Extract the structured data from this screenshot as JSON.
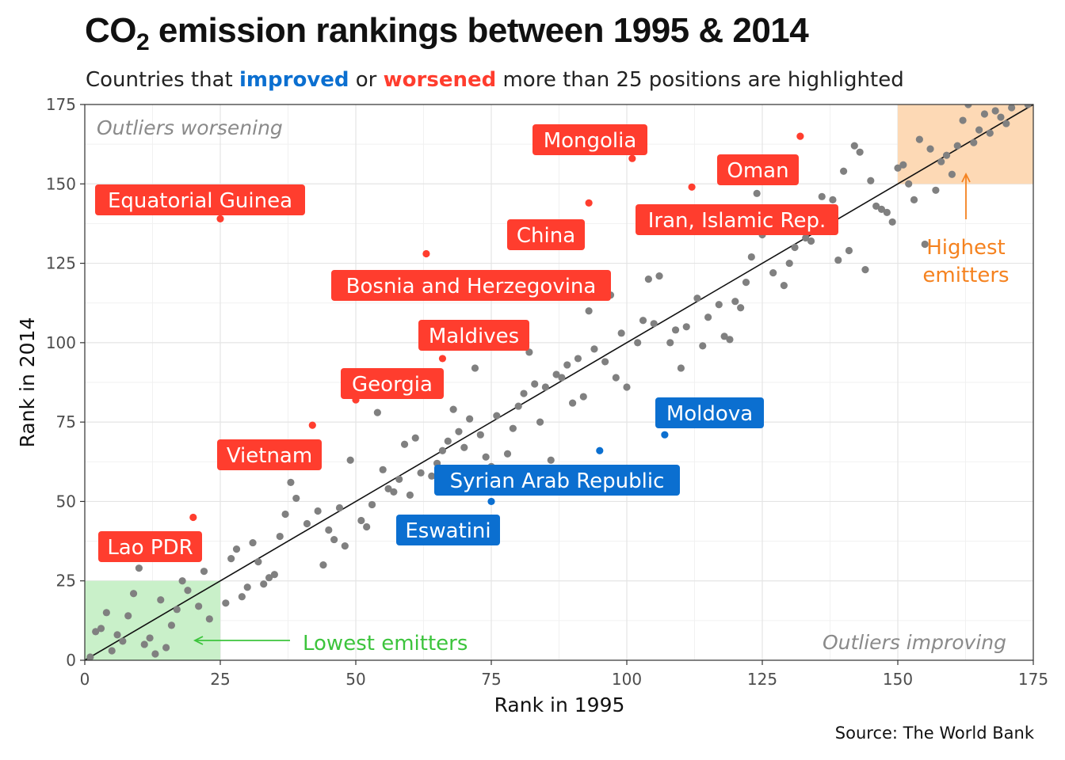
{
  "title": {
    "pre": "CO",
    "sub": "2",
    "post": " emission rankings between 1995 & 2014"
  },
  "subtitle": {
    "a": "Countries that ",
    "improved": "improved",
    "b": " or ",
    "worsened": "worsened",
    "c": " more than 25 positions are highlighted"
  },
  "source": "Source: The World Bank",
  "colors": {
    "improved": "#0b6fd0",
    "worsened": "#ff3d2e",
    "neutral": "#808080",
    "lowest_zone": "#c9f0c9",
    "highest_zone": "#fdd9b5",
    "lowest_text": "#3cc43c",
    "highest_text": "#f5821f"
  },
  "chart_data": {
    "type": "scatter",
    "xlabel": "Rank in 1995",
    "ylabel": "Rank in 2014",
    "xlim": [
      0,
      175
    ],
    "ylim": [
      0,
      175
    ],
    "xticks": [
      0,
      25,
      50,
      75,
      100,
      125,
      150,
      175
    ],
    "yticks": [
      0,
      25,
      50,
      75,
      100,
      125,
      150,
      175
    ],
    "grid": true,
    "reference_line": "y = x",
    "corner_labels": {
      "top_left": "Outliers worsening",
      "bottom_right": "Outliers improving"
    },
    "zones": [
      {
        "label": "Lowest emitters",
        "x": [
          0,
          25
        ],
        "y": [
          0,
          25
        ]
      },
      {
        "label": "Highest emitters",
        "x": [
          150,
          175
        ],
        "y": [
          150,
          175
        ]
      }
    ],
    "highlighted": [
      {
        "country": "Equatorial Guinea",
        "x": 25,
        "y": 139,
        "status": "worsened"
      },
      {
        "country": "Mongolia",
        "x": 101,
        "y": 158,
        "status": "worsened"
      },
      {
        "country": "Oman",
        "x": 132,
        "y": 165,
        "status": "worsened"
      },
      {
        "country": "China",
        "x": 93,
        "y": 144,
        "status": "worsened"
      },
      {
        "country": "Iran, Islamic Rep.",
        "x": 112,
        "y": 149,
        "status": "worsened"
      },
      {
        "country": "Bosnia and Herzegovina",
        "x": 63,
        "y": 128,
        "status": "worsened"
      },
      {
        "country": "Maldives",
        "x": 66,
        "y": 95,
        "status": "worsened"
      },
      {
        "country": "Georgia",
        "x": 50,
        "y": 82,
        "status": "worsened"
      },
      {
        "country": "Vietnam",
        "x": 42,
        "y": 74,
        "status": "worsened"
      },
      {
        "country": "Lao PDR",
        "x": 20,
        "y": 45,
        "status": "worsened"
      },
      {
        "country": "Moldova",
        "x": 107,
        "y": 71,
        "status": "improved"
      },
      {
        "country": "Syrian Arab Republic",
        "x": 95,
        "y": 66,
        "status": "improved"
      },
      {
        "country": "Eswatini",
        "x": 75,
        "y": 50,
        "status": "improved"
      }
    ],
    "other_points": [
      [
        1,
        1
      ],
      [
        2,
        9
      ],
      [
        3,
        10
      ],
      [
        4,
        15
      ],
      [
        5,
        3
      ],
      [
        6,
        8
      ],
      [
        7,
        6
      ],
      [
        8,
        14
      ],
      [
        9,
        21
      ],
      [
        10,
        29
      ],
      [
        11,
        5
      ],
      [
        12,
        7
      ],
      [
        13,
        2
      ],
      [
        14,
        19
      ],
      [
        15,
        4
      ],
      [
        16,
        11
      ],
      [
        17,
        16
      ],
      [
        18,
        25
      ],
      [
        19,
        22
      ],
      [
        21,
        17
      ],
      [
        22,
        28
      ],
      [
        23,
        13
      ],
      [
        26,
        18
      ],
      [
        27,
        32
      ],
      [
        28,
        35
      ],
      [
        29,
        20
      ],
      [
        30,
        23
      ],
      [
        31,
        37
      ],
      [
        32,
        31
      ],
      [
        33,
        24
      ],
      [
        34,
        26
      ],
      [
        35,
        27
      ],
      [
        36,
        39
      ],
      [
        37,
        46
      ],
      [
        38,
        56
      ],
      [
        39,
        51
      ],
      [
        41,
        43
      ],
      [
        43,
        47
      ],
      [
        44,
        30
      ],
      [
        45,
        41
      ],
      [
        46,
        38
      ],
      [
        47,
        48
      ],
      [
        48,
        36
      ],
      [
        49,
        63
      ],
      [
        51,
        44
      ],
      [
        52,
        42
      ],
      [
        53,
        49
      ],
      [
        54,
        78
      ],
      [
        55,
        60
      ],
      [
        56,
        54
      ],
      [
        57,
        53
      ],
      [
        58,
        57
      ],
      [
        59,
        68
      ],
      [
        60,
        52
      ],
      [
        61,
        70
      ],
      [
        62,
        59
      ],
      [
        64,
        58
      ],
      [
        65,
        62
      ],
      [
        66,
        66
      ],
      [
        67,
        69
      ],
      [
        68,
        79
      ],
      [
        69,
        72
      ],
      [
        70,
        67
      ],
      [
        71,
        76
      ],
      [
        72,
        92
      ],
      [
        73,
        71
      ],
      [
        74,
        64
      ],
      [
        75,
        61
      ],
      [
        76,
        77
      ],
      [
        77,
        56
      ],
      [
        78,
        65
      ],
      [
        79,
        73
      ],
      [
        80,
        80
      ],
      [
        81,
        84
      ],
      [
        82,
        97
      ],
      [
        83,
        87
      ],
      [
        84,
        75
      ],
      [
        85,
        86
      ],
      [
        86,
        63
      ],
      [
        87,
        90
      ],
      [
        88,
        89
      ],
      [
        89,
        93
      ],
      [
        90,
        81
      ],
      [
        91,
        95
      ],
      [
        92,
        83
      ],
      [
        93,
        110
      ],
      [
        94,
        98
      ],
      [
        96,
        94
      ],
      [
        97,
        115
      ],
      [
        98,
        89
      ],
      [
        99,
        103
      ],
      [
        100,
        86
      ],
      [
        102,
        100
      ],
      [
        103,
        107
      ],
      [
        104,
        120
      ],
      [
        105,
        106
      ],
      [
        106,
        121
      ],
      [
        108,
        100
      ],
      [
        109,
        104
      ],
      [
        110,
        92
      ],
      [
        111,
        105
      ],
      [
        113,
        114
      ],
      [
        114,
        99
      ],
      [
        115,
        108
      ],
      [
        116,
        136
      ],
      [
        117,
        112
      ],
      [
        118,
        102
      ],
      [
        119,
        101
      ],
      [
        120,
        113
      ],
      [
        121,
        111
      ],
      [
        122,
        119
      ],
      [
        123,
        127
      ],
      [
        124,
        147
      ],
      [
        125,
        134
      ],
      [
        126,
        139
      ],
      [
        127,
        122
      ],
      [
        128,
        137
      ],
      [
        129,
        118
      ],
      [
        130,
        125
      ],
      [
        131,
        130
      ],
      [
        133,
        133
      ],
      [
        134,
        132
      ],
      [
        135,
        140
      ],
      [
        136,
        146
      ],
      [
        137,
        142
      ],
      [
        138,
        145
      ],
      [
        139,
        126
      ],
      [
        140,
        154
      ],
      [
        141,
        129
      ],
      [
        142,
        162
      ],
      [
        143,
        160
      ],
      [
        144,
        123
      ],
      [
        145,
        151
      ],
      [
        146,
        143
      ],
      [
        147,
        142
      ],
      [
        148,
        141
      ],
      [
        149,
        138
      ],
      [
        150,
        155
      ],
      [
        151,
        156
      ],
      [
        152,
        150
      ],
      [
        153,
        145
      ],
      [
        154,
        164
      ],
      [
        155,
        131
      ],
      [
        156,
        161
      ],
      [
        157,
        148
      ],
      [
        158,
        157
      ],
      [
        159,
        159
      ],
      [
        160,
        153
      ],
      [
        161,
        162
      ],
      [
        162,
        170
      ],
      [
        163,
        175
      ],
      [
        164,
        163
      ],
      [
        165,
        167
      ],
      [
        166,
        172
      ],
      [
        167,
        166
      ],
      [
        168,
        173
      ],
      [
        169,
        171
      ],
      [
        170,
        169
      ],
      [
        171,
        174
      ],
      [
        172,
        176
      ],
      [
        173,
        177
      ],
      [
        174,
        175
      ],
      [
        175,
        178
      ]
    ]
  }
}
